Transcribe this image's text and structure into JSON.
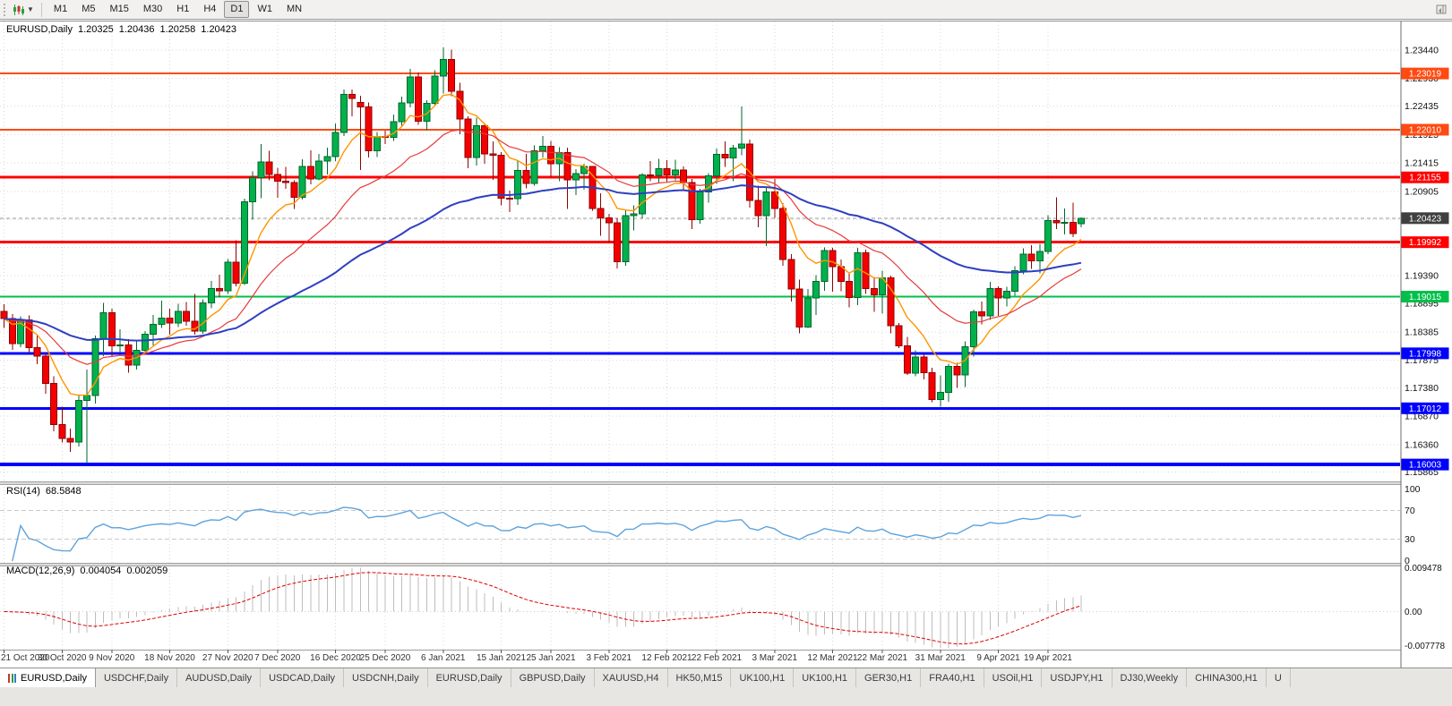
{
  "toolbar": {
    "timeframes": [
      "M1",
      "M5",
      "M15",
      "M30",
      "H1",
      "H4",
      "D1",
      "W1",
      "MN"
    ],
    "active_timeframe": "D1"
  },
  "chart_header": {
    "symbol": "EURUSD,Daily",
    "open": "1.20325",
    "high": "1.20436",
    "low": "1.20258",
    "close": "1.20423"
  },
  "indicators": {
    "rsi": {
      "label": "RSI(14)",
      "value": "68.5848",
      "period": 14,
      "axis": [
        {
          "label": "100",
          "v": 100
        },
        {
          "label": "70",
          "v": 70
        },
        {
          "label": "30",
          "v": 30
        },
        {
          "label": "0",
          "v": 0
        }
      ],
      "dashed_levels": [
        70,
        30
      ]
    },
    "macd": {
      "label": "MACD(12,26,9)",
      "value_main": "0.004054",
      "value_signal": "0.002059",
      "fast": 12,
      "slow": 26,
      "signal": 9,
      "axis": [
        {
          "label": "0.009478",
          "v": 0.009478
        },
        {
          "label": "0.00",
          "v": 0
        },
        {
          "label": "-0.007778",
          "v": -0.007778
        }
      ]
    }
  },
  "price_axis": {
    "labels": [
      "1.23440",
      "1.22930",
      "1.22435",
      "1.21925",
      "1.21415",
      "1.20905",
      "1.19390",
      "1.18895",
      "1.18385",
      "1.17875",
      "1.17380",
      "1.16870",
      "1.16360",
      "1.15865"
    ],
    "grid_prices": [
      "1.23440",
      "1.22930",
      "1.22435",
      "1.21925",
      "1.21415",
      "1.20905",
      "1.20400",
      "1.19895",
      "1.19390",
      "1.18895",
      "1.18385",
      "1.17875",
      "1.17380",
      "1.16870",
      "1.16360",
      "1.15865"
    ],
    "current_price": "1.20423",
    "current_price_value": 1.20423
  },
  "hlines": [
    {
      "price": 1.23019,
      "label": "1.23019",
      "color": "#ff4a11",
      "lw": 2
    },
    {
      "price": 1.2201,
      "label": "1.22010",
      "color": "#ff4a11",
      "lw": 2
    },
    {
      "price": 1.21155,
      "label": "1.21155",
      "color": "#ff0000",
      "lw": 3
    },
    {
      "price": 1.19992,
      "label": "1.19992",
      "color": "#ff0000",
      "lw": 3
    },
    {
      "price": 1.19015,
      "label": "1.19015",
      "color": "#00c04a",
      "lw": 2
    },
    {
      "price": 1.17998,
      "label": "1.17998",
      "color": "#0000ff",
      "lw": 3
    },
    {
      "price": 1.17012,
      "label": "1.17012",
      "color": "#0000ff",
      "lw": 3
    },
    {
      "price": 1.16003,
      "label": "1.16003",
      "color": "#0000ff",
      "lw": 4
    }
  ],
  "x_axis": {
    "ticks": [
      {
        "label": "21 Oct 2020",
        "i": 0
      },
      {
        "label": "30 Oct 2020",
        "i": 7
      },
      {
        "label": "9 Nov 2020",
        "i": 13
      },
      {
        "label": "18 Nov 2020",
        "i": 20
      },
      {
        "label": "27 Nov 2020",
        "i": 27
      },
      {
        "label": "7 Dec 2020",
        "i": 33
      },
      {
        "label": "16 Dec 2020",
        "i": 40
      },
      {
        "label": "25 Dec 2020",
        "i": 46
      },
      {
        "label": "6 Jan 2021",
        "i": 53
      },
      {
        "label": "15 Jan 2021",
        "i": 60
      },
      {
        "label": "25 Jan 2021",
        "i": 66
      },
      {
        "label": "3 Feb 2021",
        "i": 73
      },
      {
        "label": "12 Feb 2021",
        "i": 80
      },
      {
        "label": "22 Feb 2021",
        "i": 86
      },
      {
        "label": "3 Mar 2021",
        "i": 93
      },
      {
        "label": "12 Mar 2021",
        "i": 100
      },
      {
        "label": "22 Mar 2021",
        "i": 106
      },
      {
        "label": "31 Mar 2021",
        "i": 113
      },
      {
        "label": "9 Apr 2021",
        "i": 120
      },
      {
        "label": "19 Apr 2021",
        "i": 126
      }
    ]
  },
  "tabs": [
    {
      "label": "EURUSD,Daily",
      "active": true
    },
    {
      "label": "USDCHF,Daily",
      "active": false
    },
    {
      "label": "AUDUSD,Daily",
      "active": false
    },
    {
      "label": "USDCAD,Daily",
      "active": false
    },
    {
      "label": "USDCNH,Daily",
      "active": false
    },
    {
      "label": "EURUSD,Daily",
      "active": false
    },
    {
      "label": "GBPUSD,Daily",
      "active": false
    },
    {
      "label": "XAUUSD,H4",
      "active": false
    },
    {
      "label": "HK50,M15",
      "active": false
    },
    {
      "label": "UK100,H1",
      "active": false
    },
    {
      "label": "UK100,H1",
      "active": false
    },
    {
      "label": "GER30,H1",
      "active": false
    },
    {
      "label": "FRA40,H1",
      "active": false
    },
    {
      "label": "USOil,H1",
      "active": false
    },
    {
      "label": "USDJPY,H1",
      "active": false
    },
    {
      "label": "DJ30,Weekly",
      "active": false
    },
    {
      "label": "CHINA300,H1",
      "active": false
    },
    {
      "label": "U",
      "active": false
    }
  ],
  "colors": {
    "up": "#00b14c",
    "up_border": "#00662c",
    "down": "#f40000",
    "down_border": "#8f0000",
    "ma_fast": "#ff9500",
    "ma_mid": "#e43b3b",
    "ma_slow": "#2e3fc1",
    "rsi": "#5ea3dc",
    "macd_hist": "#bdbdbd",
    "macd_signal": "#e00000",
    "grid": "#d9d9d9",
    "current_box": "#3f3f3f",
    "current_line": "#9a9a9a"
  },
  "chart_data": {
    "type": "candlestick",
    "symbol": "EURUSD",
    "timeframe": "Daily",
    "title": "EURUSD,Daily",
    "y_range": [
      1.157,
      1.2392
    ],
    "ma_periods": {
      "fast": 8,
      "mid": 21,
      "slow": 55
    },
    "candles": [
      [
        1.1875,
        1.1888,
        1.1845,
        1.1862
      ],
      [
        1.1862,
        1.187,
        1.1806,
        1.1817
      ],
      [
        1.1817,
        1.1866,
        1.1811,
        1.186
      ],
      [
        1.186,
        1.1868,
        1.18,
        1.181
      ],
      [
        1.181,
        1.1832,
        1.178,
        1.1795
      ],
      [
        1.1795,
        1.18,
        1.1727,
        1.1746
      ],
      [
        1.1746,
        1.1759,
        1.166,
        1.1672
      ],
      [
        1.1672,
        1.1704,
        1.164,
        1.1647
      ],
      [
        1.1647,
        1.1665,
        1.1623,
        1.1641
      ],
      [
        1.1641,
        1.1725,
        1.1633,
        1.1715
      ],
      [
        1.1715,
        1.1771,
        1.1602,
        1.1724
      ],
      [
        1.1724,
        1.1832,
        1.171,
        1.1826
      ],
      [
        1.1826,
        1.189,
        1.1795,
        1.1873
      ],
      [
        1.1873,
        1.188,
        1.1795,
        1.1813
      ],
      [
        1.1813,
        1.1843,
        1.18,
        1.1815
      ],
      [
        1.1815,
        1.1825,
        1.1765,
        1.1779
      ],
      [
        1.1779,
        1.1823,
        1.1771,
        1.1805
      ],
      [
        1.1805,
        1.184,
        1.1799,
        1.1834
      ],
      [
        1.1834,
        1.1869,
        1.1814,
        1.1852
      ],
      [
        1.1852,
        1.1894,
        1.1845,
        1.1863
      ],
      [
        1.1863,
        1.188,
        1.1833,
        1.1854
      ],
      [
        1.1854,
        1.1889,
        1.1847,
        1.1875
      ],
      [
        1.1875,
        1.1892,
        1.1849,
        1.1857
      ],
      [
        1.1857,
        1.1906,
        1.1833,
        1.184
      ],
      [
        1.184,
        1.1897,
        1.1835,
        1.189
      ],
      [
        1.189,
        1.193,
        1.1881,
        1.1916
      ],
      [
        1.1916,
        1.1941,
        1.1901,
        1.1912
      ],
      [
        1.1912,
        1.1969,
        1.1906,
        1.1963
      ],
      [
        1.1963,
        1.2003,
        1.192,
        1.1926
      ],
      [
        1.1926,
        1.2077,
        1.1922,
        1.2072
      ],
      [
        1.2072,
        1.2126,
        1.204,
        1.2115
      ],
      [
        1.2115,
        1.2175,
        1.2078,
        1.2143
      ],
      [
        1.2143,
        1.2163,
        1.211,
        1.2121
      ],
      [
        1.2121,
        1.2133,
        1.2079,
        1.2109
      ],
      [
        1.2109,
        1.2134,
        1.2095,
        1.2106
      ],
      [
        1.2106,
        1.211,
        1.2059,
        1.208
      ],
      [
        1.208,
        1.2148,
        1.2076,
        1.2135
      ],
      [
        1.2135,
        1.2164,
        1.2103,
        1.2113
      ],
      [
        1.2113,
        1.2158,
        1.211,
        1.2145
      ],
      [
        1.2145,
        1.2169,
        1.2121,
        1.2153
      ],
      [
        1.2153,
        1.2212,
        1.2145,
        1.2196
      ],
      [
        1.2196,
        1.2273,
        1.219,
        1.2264
      ],
      [
        1.2264,
        1.2273,
        1.2225,
        1.2257
      ],
      [
        1.225,
        1.2262,
        1.2129,
        1.2242
      ],
      [
        1.2242,
        1.225,
        1.2151,
        1.2163
      ],
      [
        1.2163,
        1.2197,
        1.2152,
        1.2189
      ],
      [
        1.2189,
        1.2199,
        1.2175,
        1.2187
      ],
      [
        1.2187,
        1.2228,
        1.2181,
        1.2215
      ],
      [
        1.2215,
        1.226,
        1.2208,
        1.2249
      ],
      [
        1.2249,
        1.231,
        1.2241,
        1.2296
      ],
      [
        1.2296,
        1.2304,
        1.221,
        1.2216
      ],
      [
        1.2216,
        1.2254,
        1.22,
        1.2248
      ],
      [
        1.2248,
        1.2308,
        1.2244,
        1.2297
      ],
      [
        1.2297,
        1.2349,
        1.2266,
        1.2327
      ],
      [
        1.2327,
        1.2345,
        1.2261,
        1.227
      ],
      [
        1.227,
        1.2285,
        1.2193,
        1.222
      ],
      [
        1.222,
        1.2225,
        1.2132,
        1.2151
      ],
      [
        1.2151,
        1.2223,
        1.2137,
        1.2208
      ],
      [
        1.2208,
        1.2213,
        1.214,
        1.2158
      ],
      [
        1.2158,
        1.218,
        1.2111,
        1.2155
      ],
      [
        1.2155,
        1.2161,
        1.2065,
        1.2078
      ],
      [
        1.2078,
        1.2092,
        1.2053,
        1.2077
      ],
      [
        1.2077,
        1.2145,
        1.2066,
        1.2128
      ],
      [
        1.2128,
        1.2158,
        1.2096,
        1.2105
      ],
      [
        1.2105,
        1.2173,
        1.2101,
        1.2163
      ],
      [
        1.2163,
        1.219,
        1.2151,
        1.2171
      ],
      [
        1.2171,
        1.2181,
        1.2116,
        1.214
      ],
      [
        1.214,
        1.217,
        1.2109,
        1.216
      ],
      [
        1.216,
        1.2169,
        1.2059,
        1.2111
      ],
      [
        1.2111,
        1.213,
        1.2084,
        1.2122
      ],
      [
        1.2122,
        1.214,
        1.2093,
        1.2135
      ],
      [
        1.2135,
        1.2136,
        1.2056,
        1.206
      ],
      [
        1.206,
        1.2087,
        1.2011,
        1.2043
      ],
      [
        1.2043,
        1.205,
        1.1999,
        1.2034
      ],
      [
        1.2034,
        1.2043,
        1.1952,
        1.1964
      ],
      [
        1.1964,
        1.2057,
        1.1957,
        1.2047
      ],
      [
        1.2047,
        1.2065,
        1.202,
        1.205
      ],
      [
        1.205,
        1.2123,
        1.2042,
        1.212
      ],
      [
        1.212,
        1.2145,
        1.2109,
        1.2119
      ],
      [
        1.2119,
        1.2149,
        1.2105,
        1.2131
      ],
      [
        1.2131,
        1.2146,
        1.2108,
        1.212
      ],
      [
        1.212,
        1.2147,
        1.211,
        1.2129
      ],
      [
        1.2129,
        1.2135,
        1.2094,
        1.2106
      ],
      [
        1.2106,
        1.2113,
        1.2023,
        1.204
      ],
      [
        1.204,
        1.2095,
        1.2032,
        1.2089
      ],
      [
        1.2089,
        1.2123,
        1.207,
        1.2118
      ],
      [
        1.2118,
        1.2167,
        1.2104,
        1.2157
      ],
      [
        1.2157,
        1.218,
        1.2134,
        1.215
      ],
      [
        1.215,
        1.2174,
        1.2109,
        1.2168
      ],
      [
        1.2168,
        1.2243,
        1.2155,
        1.2175
      ],
      [
        1.2175,
        1.2183,
        1.2061,
        1.2074
      ],
      [
        1.2074,
        1.2101,
        1.2026,
        1.2047
      ],
      [
        1.2047,
        1.2097,
        1.1992,
        1.2089
      ],
      [
        1.2089,
        1.2113,
        1.2043,
        1.206
      ],
      [
        1.206,
        1.2069,
        1.1957,
        1.1968
      ],
      [
        1.1968,
        1.1978,
        1.1893,
        1.1915
      ],
      [
        1.1915,
        1.1932,
        1.1836,
        1.1847
      ],
      [
        1.1847,
        1.1915,
        1.1845,
        1.1899
      ],
      [
        1.1899,
        1.194,
        1.1869,
        1.1929
      ],
      [
        1.1929,
        1.199,
        1.1912,
        1.1984
      ],
      [
        1.1984,
        1.1989,
        1.191,
        1.1955
      ],
      [
        1.1955,
        1.1968,
        1.1911,
        1.1929
      ],
      [
        1.1929,
        1.1943,
        1.1882,
        1.19
      ],
      [
        1.19,
        1.1989,
        1.1886,
        1.198
      ],
      [
        1.198,
        1.1986,
        1.1906,
        1.1916
      ],
      [
        1.1916,
        1.1936,
        1.1874,
        1.1905
      ],
      [
        1.1905,
        1.1948,
        1.1871,
        1.1935
      ],
      [
        1.1935,
        1.1939,
        1.1836,
        1.1849
      ],
      [
        1.1849,
        1.1854,
        1.1809,
        1.1813
      ],
      [
        1.1813,
        1.1829,
        1.1761,
        1.1764
      ],
      [
        1.1764,
        1.1805,
        1.1759,
        1.1793
      ],
      [
        1.1793,
        1.1798,
        1.1753,
        1.1765
      ],
      [
        1.1765,
        1.1774,
        1.1712,
        1.1717
      ],
      [
        1.1717,
        1.176,
        1.1704,
        1.173
      ],
      [
        1.173,
        1.1781,
        1.1713,
        1.1776
      ],
      [
        1.1776,
        1.1783,
        1.1738,
        1.1761
      ],
      [
        1.1761,
        1.1821,
        1.1739,
        1.1812
      ],
      [
        1.1812,
        1.1878,
        1.1794,
        1.1874
      ],
      [
        1.1874,
        1.1893,
        1.1852,
        1.1867
      ],
      [
        1.1867,
        1.1928,
        1.186,
        1.1916
      ],
      [
        1.1916,
        1.192,
        1.1867,
        1.1899
      ],
      [
        1.1899,
        1.1919,
        1.1884,
        1.1911
      ],
      [
        1.1911,
        1.1956,
        1.1903,
        1.1948
      ],
      [
        1.1948,
        1.1988,
        1.1942,
        1.1978
      ],
      [
        1.1978,
        1.1994,
        1.1951,
        1.1966
      ],
      [
        1.1966,
        1.1996,
        1.1943,
        1.1983
      ],
      [
        1.1983,
        1.2048,
        1.1978,
        1.2038
      ],
      [
        1.2038,
        1.208,
        1.2023,
        1.2034
      ],
      [
        1.2034,
        1.206,
        1.2013,
        1.2035
      ],
      [
        1.2035,
        1.207,
        1.2008,
        1.2015
      ],
      [
        1.20325,
        1.20436,
        1.20258,
        1.20423
      ]
    ]
  }
}
